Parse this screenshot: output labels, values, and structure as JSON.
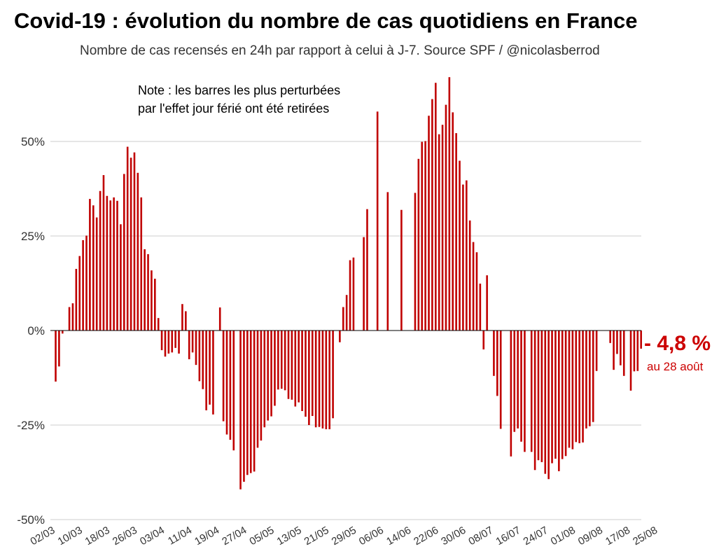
{
  "title": "Covid-19 : évolution du nombre de cas quotidiens en France",
  "subtitle": "Nombre de cas recensés en 24h par rapport à celui à J-7. Source SPF / @nicolasberrod",
  "note": {
    "line1": "Note : les barres les plus perturbées",
    "line2": "par l'effet jour férié ont été retirées"
  },
  "callout": {
    "value": "- 4,8 %",
    "date": "au 28 août",
    "color": "#cc0000"
  },
  "colors": {
    "bar": "#c00000",
    "grid": "#cccccc",
    "axis": "#000000"
  },
  "chart_data": {
    "type": "bar",
    "ylim": [
      -50,
      70
    ],
    "yticks": [
      50,
      25,
      0,
      -25,
      -50
    ],
    "ytick_labels": [
      "50%",
      "25%",
      "0%",
      "-25%",
      "-50%"
    ],
    "xtick_labels": [
      "02/03",
      "10/03",
      "18/03",
      "26/03",
      "03/04",
      "11/04",
      "19/04",
      "27/04",
      "05/05",
      "13/05",
      "21/05",
      "29/05",
      "06/06",
      "14/06",
      "22/06",
      "30/06",
      "08/07",
      "16/07",
      "24/07",
      "01/08",
      "09/08",
      "17/08",
      "25/08"
    ],
    "start": "02/03",
    "end": "28/08",
    "values": [
      -13.5,
      -9.5,
      -0.8,
      0,
      6.2,
      7.2,
      16.3,
      19.7,
      23.9,
      25.1,
      34.8,
      33.1,
      29.9,
      36.9,
      41.1,
      35.6,
      34.4,
      35.2,
      34.3,
      28.1,
      41.4,
      48.6,
      45.7,
      47.1,
      41.7,
      35.2,
      21.5,
      20.2,
      15.9,
      13.7,
      3.3,
      -5.2,
      -6.9,
      -6.1,
      -5.8,
      -4.6,
      -6.1,
      7.0,
      5.1,
      -7.6,
      -5.8,
      -9.1,
      -13.4,
      -15.5,
      -21.1,
      -19.6,
      -22.2,
      null,
      6.1,
      -24.0,
      -27.5,
      -28.9,
      -31.7,
      null,
      -42.0,
      -40.0,
      -38.2,
      -37.7,
      -37.3,
      -31.0,
      -29.1,
      -25.6,
      -23.8,
      -22.7,
      -19.9,
      -15.6,
      -15.4,
      -15.8,
      -18.1,
      -18.3,
      -20.1,
      -19.0,
      -21.3,
      -22.8,
      -25.0,
      -22.6,
      -25.6,
      -25.5,
      -25.9,
      -26.1,
      -26.1,
      -23.2,
      null,
      -3.1,
      6.2,
      9.4,
      18.6,
      19.3,
      null,
      null,
      24.7,
      32.1,
      null,
      null,
      57.9,
      null,
      null,
      36.6,
      null,
      null,
      null,
      31.9,
      null,
      null,
      null,
      36.4,
      45.4,
      49.9,
      50.1,
      56.8,
      61.2,
      65.5,
      51.9,
      54.4,
      59.7,
      67.0,
      57.7,
      52.2,
      44.9,
      38.6,
      39.7,
      29.1,
      23.4,
      20.7,
      12.4,
      -5.0,
      14.6,
      null,
      -12.0,
      -17.3,
      -26.0,
      null,
      null,
      -33.3,
      -26.8,
      -25.9,
      -29.4,
      -32.1,
      null,
      -32.1,
      -36.9,
      -34.3,
      -34.8,
      -37.9,
      -39.3,
      -35.1,
      -33.9,
      -37.2,
      -34.0,
      -33.2,
      -31.0,
      -31.4,
      -29.5,
      -29.8,
      -29.6,
      -25.9,
      -25.3,
      -24.2,
      -10.7,
      null,
      null,
      null,
      -3.3,
      -10.4,
      -6.2,
      -9.2,
      -12.0,
      null,
      -15.9,
      -10.8,
      -10.7,
      -4.8
    ]
  }
}
